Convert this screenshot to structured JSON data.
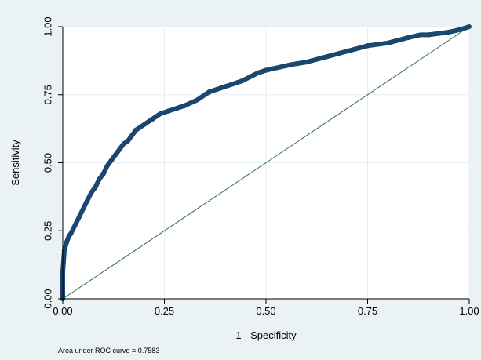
{
  "chart_data": {
    "type": "line",
    "title": "",
    "xlabel": "1 - Specificity",
    "ylabel": "Sensitivity",
    "xlim": [
      0,
      1
    ],
    "ylim": [
      0,
      1
    ],
    "x_ticks": [
      "0.00",
      "0.25",
      "0.50",
      "0.75",
      "1.00"
    ],
    "y_ticks": [
      "0.00",
      "0.25",
      "0.50",
      "0.75",
      "1.00"
    ],
    "x_tick_values": [
      0,
      0.25,
      0.5,
      0.75,
      1
    ],
    "y_tick_values": [
      0,
      0.25,
      0.5,
      0.75,
      1
    ],
    "grid": true,
    "note": "Area under ROC curve = 0.7583",
    "colors": {
      "roc": "#1a466f",
      "reference": "#2f6b4f",
      "plot_bg": "#ffffff",
      "outer_bg": "#eaf2f3",
      "grid": "#e8eef0"
    },
    "series": [
      {
        "type": "roc_curve",
        "x": [
          0,
          0,
          0,
          0.002,
          0.004,
          0.006,
          0.01,
          0.015,
          0.02,
          0.03,
          0.04,
          0.05,
          0.06,
          0.07,
          0.08,
          0.09,
          0.1,
          0.11,
          0.12,
          0.13,
          0.14,
          0.15,
          0.16,
          0.17,
          0.18,
          0.2,
          0.22,
          0.24,
          0.26,
          0.28,
          0.3,
          0.33,
          0.36,
          0.4,
          0.44,
          0.48,
          0.5,
          0.53,
          0.56,
          0.6,
          0.65,
          0.7,
          0.75,
          0.8,
          0.85,
          0.88,
          0.9,
          0.95,
          0.98,
          1.0
        ],
        "y": [
          0,
          0.05,
          0.1,
          0.14,
          0.18,
          0.19,
          0.21,
          0.23,
          0.24,
          0.27,
          0.3,
          0.33,
          0.36,
          0.39,
          0.41,
          0.44,
          0.46,
          0.49,
          0.51,
          0.53,
          0.55,
          0.57,
          0.58,
          0.6,
          0.62,
          0.64,
          0.66,
          0.68,
          0.69,
          0.7,
          0.71,
          0.73,
          0.76,
          0.78,
          0.8,
          0.83,
          0.84,
          0.85,
          0.86,
          0.87,
          0.89,
          0.91,
          0.93,
          0.94,
          0.96,
          0.97,
          0.97,
          0.98,
          0.99,
          1.0
        ]
      },
      {
        "type": "reference_line",
        "x": [
          0,
          1
        ],
        "y": [
          0,
          1
        ]
      }
    ]
  }
}
